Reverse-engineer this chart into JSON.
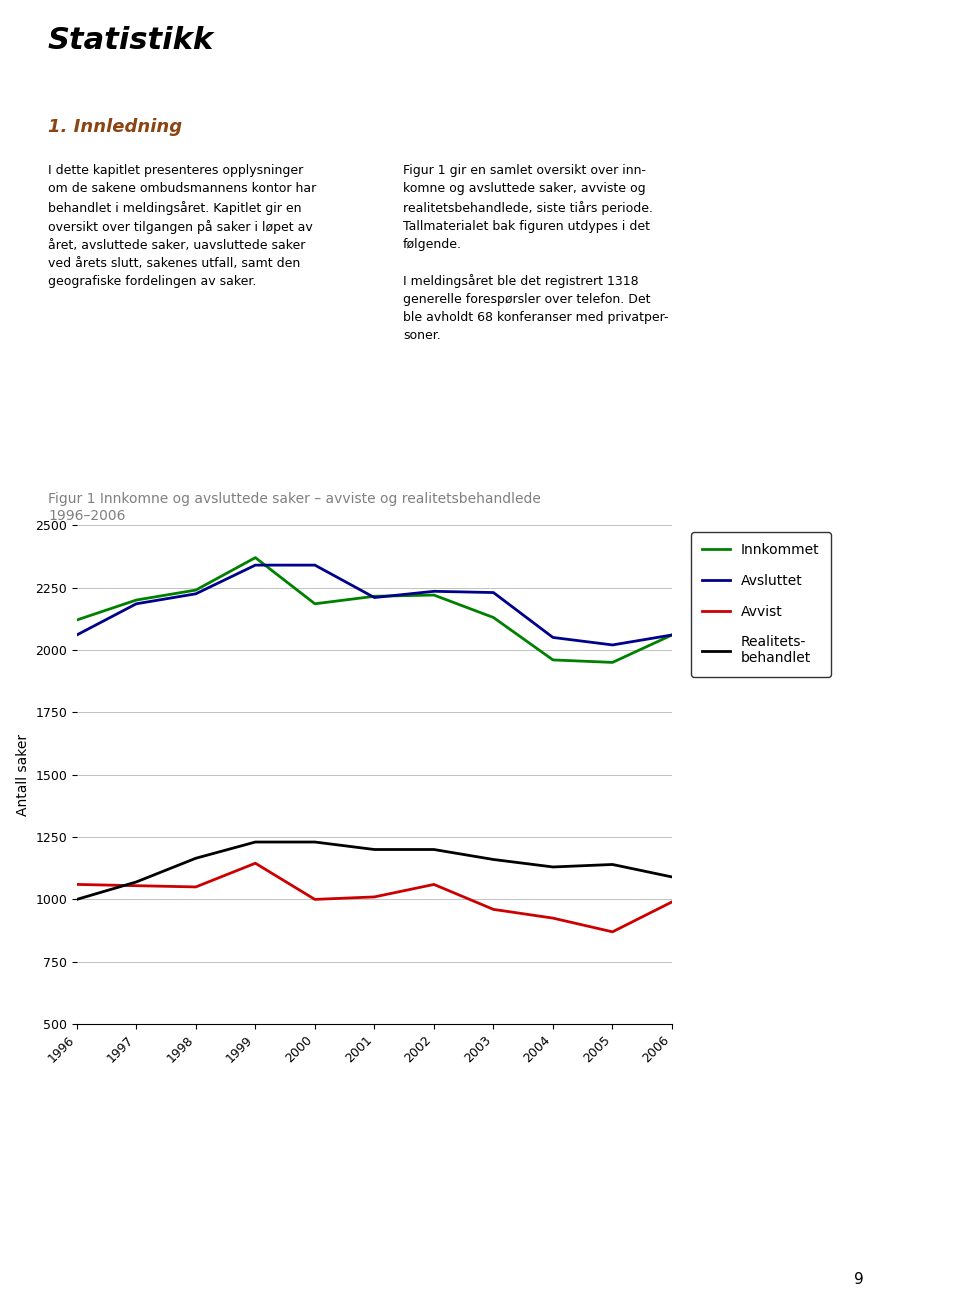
{
  "years": [
    1996,
    1997,
    1998,
    1999,
    2000,
    2001,
    2002,
    2003,
    2004,
    2005,
    2006
  ],
  "innkommet": [
    2120,
    2200,
    2240,
    2370,
    2185,
    2215,
    2220,
    2130,
    1960,
    1950,
    2060
  ],
  "avsluttet": [
    2060,
    2185,
    2225,
    2340,
    2340,
    2210,
    2235,
    2230,
    2050,
    2020,
    2060
  ],
  "avvist": [
    1060,
    1055,
    1050,
    1145,
    1000,
    1010,
    1060,
    960,
    925,
    870,
    990
  ],
  "realitets": [
    1000,
    1070,
    1165,
    1230,
    1230,
    1200,
    1200,
    1160,
    1130,
    1140,
    1090
  ],
  "colors": {
    "innkommet": "#008000",
    "avsluttet": "#00008B",
    "avvist": "#CC0000",
    "realitets": "#000000"
  },
  "title": "Figur 1 Innkomne og avsluttede saker – avviste og realitetsbehandlede\n1996–2006",
  "ylabel": "Antall saker",
  "ylim": [
    500,
    2500
  ],
  "yticks": [
    500,
    750,
    1000,
    1250,
    1500,
    1750,
    2000,
    2250,
    2500
  ],
  "legend_labels": [
    "Innkommet",
    "Avsluttet",
    "Avvist",
    "Realitets-\nbehandlet"
  ],
  "title_color": "#808080",
  "linewidth": 2.0,
  "page_title": "Statistikk",
  "section_title": "1. Innledning",
  "background_color": "#ffffff"
}
